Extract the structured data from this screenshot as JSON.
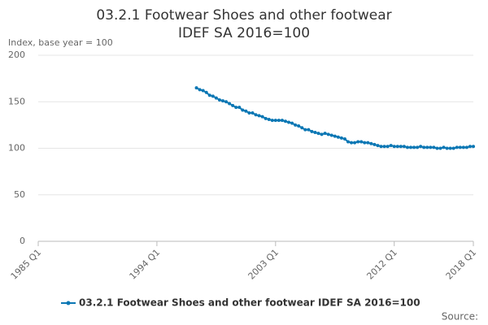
{
  "chart_data": {
    "type": "line",
    "title": "03.2.1 Footwear Shoes and other footwear IDEF SA 2016=100",
    "y_label": "Index, base year = 100",
    "source": "Source:",
    "x": [
      "1997 Q1",
      "1997 Q2",
      "1997 Q3",
      "1997 Q4",
      "1998 Q1",
      "1998 Q2",
      "1998 Q3",
      "1998 Q4",
      "1999 Q1",
      "1999 Q2",
      "1999 Q3",
      "1999 Q4",
      "2000 Q1",
      "2000 Q2",
      "2000 Q3",
      "2000 Q4",
      "2001 Q1",
      "2001 Q2",
      "2001 Q3",
      "2001 Q4",
      "2002 Q1",
      "2002 Q2",
      "2002 Q3",
      "2002 Q4",
      "2003 Q1",
      "2003 Q2",
      "2003 Q3",
      "2003 Q4",
      "2004 Q1",
      "2004 Q2",
      "2004 Q3",
      "2004 Q4",
      "2005 Q1",
      "2005 Q2",
      "2005 Q3",
      "2005 Q4",
      "2006 Q1",
      "2006 Q2",
      "2006 Q3",
      "2006 Q4",
      "2007 Q1",
      "2007 Q2",
      "2007 Q3",
      "2007 Q4",
      "2008 Q1",
      "2008 Q2",
      "2008 Q3",
      "2008 Q4",
      "2009 Q1",
      "2009 Q2",
      "2009 Q3",
      "2009 Q4",
      "2010 Q1",
      "2010 Q2",
      "2010 Q3",
      "2010 Q4",
      "2011 Q1",
      "2011 Q2",
      "2011 Q3",
      "2011 Q4",
      "2012 Q1",
      "2012 Q2",
      "2012 Q3",
      "2012 Q4",
      "2013 Q1",
      "2013 Q2",
      "2013 Q3",
      "2013 Q4",
      "2014 Q1",
      "2014 Q2",
      "2014 Q3",
      "2014 Q4",
      "2015 Q1",
      "2015 Q2",
      "2015 Q3",
      "2015 Q4",
      "2016 Q1",
      "2016 Q2",
      "2016 Q3",
      "2016 Q4",
      "2017 Q1",
      "2017 Q2",
      "2017 Q3",
      "2017 Q4",
      "2018 Q1"
    ],
    "series": [
      {
        "name": "03.2.1 Footwear Shoes and other footwear IDEF SA 2016=100",
        "color": "#0b77b4",
        "values": [
          165,
          163,
          162,
          160,
          157,
          156,
          154,
          152,
          151,
          150,
          148,
          146,
          144,
          144,
          141,
          140,
          138,
          138,
          136,
          135,
          134,
          132,
          131,
          130,
          130,
          130,
          130,
          129,
          128,
          127,
          125,
          124,
          122,
          120,
          120,
          118,
          117,
          116,
          115,
          116,
          115,
          114,
          113,
          112,
          111,
          110,
          107,
          106,
          106,
          107,
          107,
          106,
          106,
          105,
          104,
          103,
          102,
          102,
          102,
          103,
          102,
          102,
          102,
          102,
          101,
          101,
          101,
          101,
          102,
          101,
          101,
          101,
          101,
          100,
          100,
          101,
          100,
          100,
          100,
          101,
          101,
          101,
          101,
          102,
          102
        ]
      }
    ],
    "xlim": [
      "1985 Q1",
      "2018 Q1"
    ],
    "xticks": [
      "1985 Q1",
      "1994 Q1",
      "2003 Q1",
      "2012 Q1",
      "2018 Q1"
    ],
    "ylim": [
      0,
      200
    ],
    "yticks": [
      0,
      50,
      100,
      150,
      200
    ],
    "grid": true
  }
}
